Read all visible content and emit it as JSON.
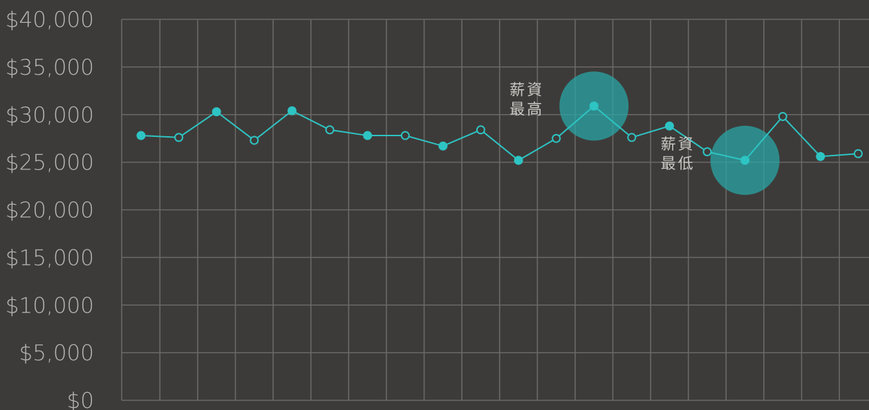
{
  "chart_data": {
    "type": "line",
    "title": "",
    "xlabel": "",
    "ylabel": "",
    "ylim": [
      0,
      40000
    ],
    "yticks": [
      0,
      5000,
      10000,
      15000,
      20000,
      25000,
      30000,
      35000,
      40000
    ],
    "ytick_labels": [
      "$0",
      "$5,000",
      "$10,000",
      "$15,000",
      "$20,000",
      "$25,000",
      "$30,000",
      "$35,000",
      "$40,000"
    ],
    "grid": true,
    "series": [
      {
        "values": [
          27800,
          27600,
          30300,
          27300,
          30400,
          28400,
          27800,
          27800,
          26700,
          28400,
          25200,
          27500,
          30900,
          27600,
          28800,
          26100,
          25200,
          29800,
          25600,
          25900
        ],
        "marker_filled": [
          true,
          false,
          true,
          false,
          true,
          false,
          true,
          false,
          true,
          false,
          true,
          false,
          true,
          false,
          true,
          false,
          true,
          false,
          true,
          false
        ]
      }
    ],
    "annotations": [
      {
        "index": 12,
        "line1": "薪資",
        "line2": "最高",
        "side": "left"
      },
      {
        "index": 16,
        "line1": "薪資",
        "line2": "最低",
        "side": "left"
      }
    ]
  },
  "colors": {
    "background": "#3d3b39",
    "line": "#2ec4c4",
    "highlight": "#2aa5a5",
    "grid": "#6b6966",
    "text": "#b8b6b2"
  }
}
